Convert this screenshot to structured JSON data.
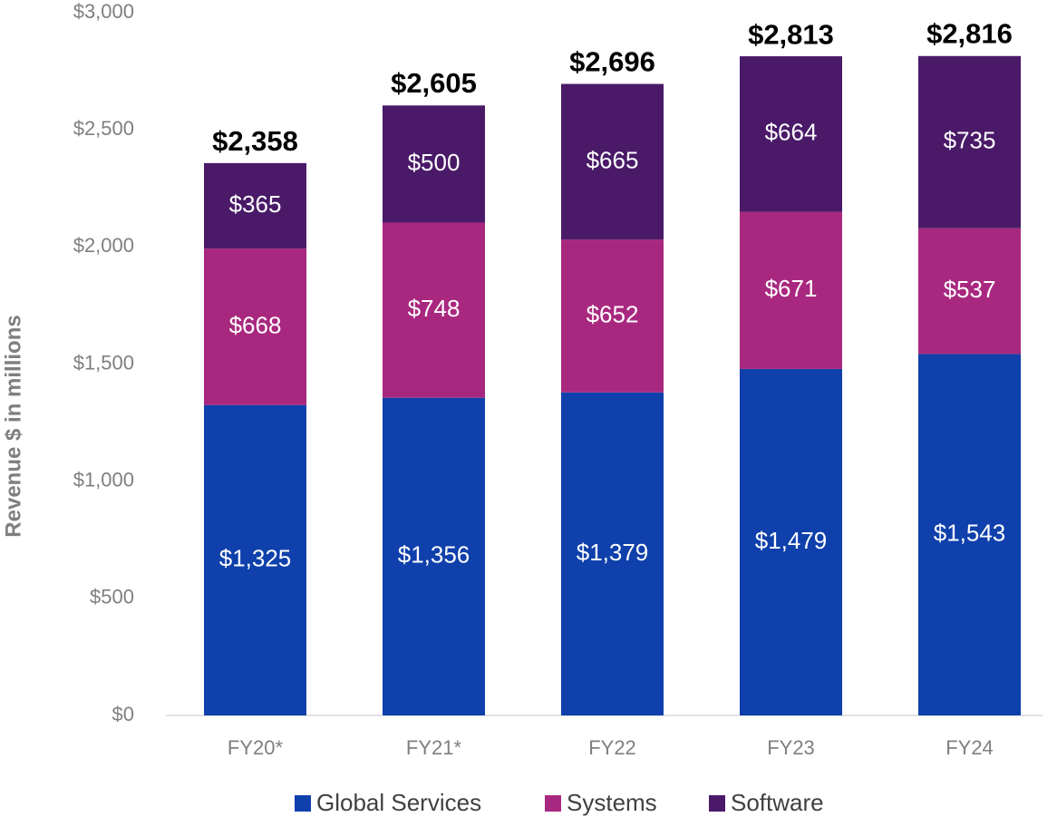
{
  "chart_data": {
    "type": "stacked_bar",
    "y_label": "Revenue $ in millions",
    "categories": [
      "FY20*",
      "FY21*",
      "FY22",
      "FY23",
      "FY24"
    ],
    "series": [
      {
        "name": "Global Services",
        "color": "#0f40ab",
        "values": [
          1325,
          1356,
          1379,
          1479,
          1543
        ],
        "value_labels": [
          "$1,325",
          "$1,356",
          "$1,379",
          "$1,479",
          "$1,543"
        ]
      },
      {
        "name": "Systems",
        "color": "#a9287f",
        "values": [
          668,
          748,
          652,
          671,
          537
        ],
        "value_labels": [
          "$668",
          "$748",
          "$652",
          "$671",
          "$537"
        ]
      },
      {
        "name": "Software",
        "color": "#4a1a68",
        "values": [
          365,
          500,
          665,
          664,
          735
        ],
        "value_labels": [
          "$365",
          "$500",
          "$665",
          "$664",
          "$735"
        ]
      }
    ],
    "totals": [
      2358,
      2605,
      2696,
      2813,
      2816
    ],
    "total_labels": [
      "$2,358",
      "$2,605",
      "$2,696",
      "$2,813",
      "$2,816"
    ],
    "ylim": [
      0,
      3000
    ],
    "yticks": [
      {
        "value": 0,
        "label": "$0"
      },
      {
        "value": 500,
        "label": "$500"
      },
      {
        "value": 1000,
        "label": "$1,000"
      },
      {
        "value": 1500,
        "label": "$1,500"
      },
      {
        "value": 2000,
        "label": "$2,000"
      },
      {
        "value": 2500,
        "label": "$2,500"
      },
      {
        "value": 3000,
        "label": "$3,000"
      }
    ],
    "legend": "bottom"
  }
}
